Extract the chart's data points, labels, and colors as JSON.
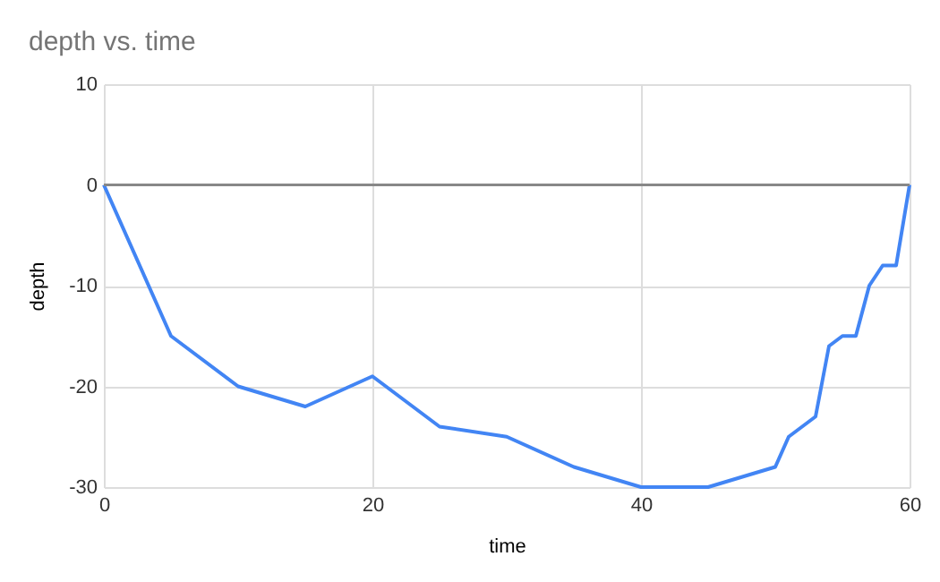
{
  "chart_data": {
    "type": "line",
    "title": "depth vs. time",
    "xlabel": "time",
    "ylabel": "depth",
    "x": [
      0,
      5,
      10,
      15,
      20,
      25,
      30,
      35,
      40,
      45,
      50,
      51,
      53,
      54,
      55,
      56,
      57,
      58,
      59,
      60
    ],
    "series": [
      {
        "color": "#4285f4",
        "values": [
          0,
          -15,
          -20,
          -22,
          -19,
          -24,
          -25,
          -28,
          -30,
          -30,
          -28,
          -25,
          -23,
          -16,
          -15,
          -15,
          -10,
          -8,
          -8,
          0
        ]
      }
    ],
    "xlim": [
      0,
      60
    ],
    "xticks": [
      0,
      20,
      40,
      60
    ],
    "ylim": [
      -30,
      10
    ],
    "yticks": [
      -30,
      -20,
      -10,
      0,
      10
    ],
    "ref_lines": [
      {
        "axis": "y",
        "value": 0,
        "color": "#888888"
      }
    ],
    "grid": true,
    "marker": "none",
    "line_style": "solid"
  }
}
